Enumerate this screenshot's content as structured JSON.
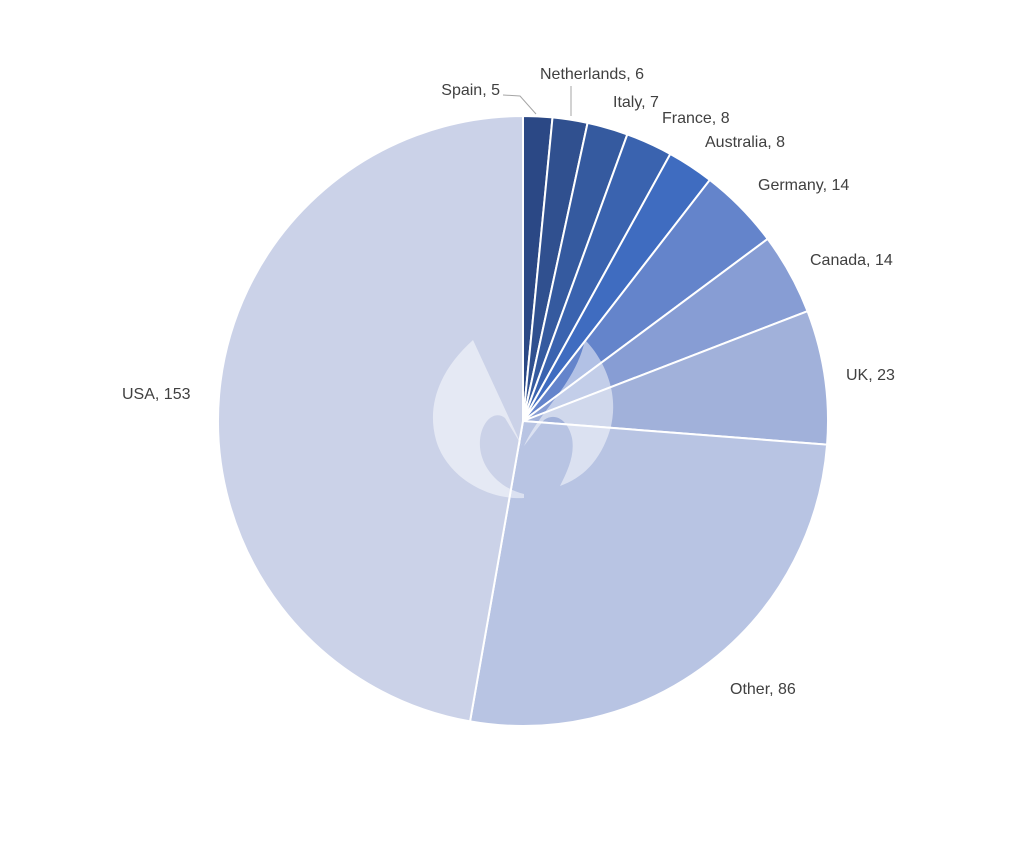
{
  "chart_data": {
    "type": "pie",
    "start_angle_deg": 0,
    "direction": "clockwise",
    "legend": "none",
    "slices": [
      {
        "label": "Spain",
        "value": 5,
        "color": "#2b4885"
      },
      {
        "label": "Netherlands",
        "value": 6,
        "color": "#30508f"
      },
      {
        "label": "Italy",
        "value": 7,
        "color": "#355a9f"
      },
      {
        "label": "France",
        "value": 8,
        "color": "#3a63af"
      },
      {
        "label": "Australia",
        "value": 8,
        "color": "#3f6cc0"
      },
      {
        "label": "Germany",
        "value": 14,
        "color": "#6484cb"
      },
      {
        "label": "Canada",
        "value": 14,
        "color": "#879dd4"
      },
      {
        "label": "UK",
        "value": 23,
        "color": "#a1b1da"
      },
      {
        "label": "Other",
        "value": 86,
        "color": "#b8c4e3"
      },
      {
        "label": "USA",
        "value": 153,
        "color": "#cbd2e8"
      }
    ],
    "data_labels": [
      "Spain, 5",
      "Netherlands, 6",
      "Italy, 7",
      "France, 8",
      "Australia, 8",
      "Germany, 14",
      "Canada, 14",
      "UK, 23",
      "Other, 86",
      "USA, 153"
    ]
  },
  "watermark": {
    "name": "flame-logo",
    "color": "#ffffff"
  }
}
